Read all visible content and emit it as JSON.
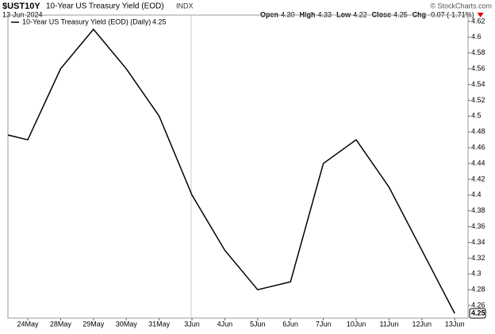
{
  "header": {
    "symbol": "$UST10Y",
    "name": "10-Year US Treasury Yield (EOD)",
    "exchange": "INDX",
    "date": "13-Jun-2024",
    "credit": "© StockCharts.com",
    "quote": [
      {
        "label": "Open",
        "value": "4.30"
      },
      {
        "label": "High",
        "value": "4.33"
      },
      {
        "label": "Low",
        "value": "4.22"
      },
      {
        "label": "Close",
        "value": "4.25"
      },
      {
        "label": "Chg",
        "value": "-0.07 (-1.71%)"
      }
    ]
  },
  "chart_data": {
    "type": "line",
    "categories": [
      null,
      "24May",
      "28May",
      "29May",
      "30May",
      "31May",
      "3Jun",
      "4Jun",
      "5Jun",
      "6Jun",
      "7Jun",
      "10Jun",
      "11Jun",
      "12Jun",
      "13Jun"
    ],
    "series": [
      {
        "name": "10-Year US Treasury Yield (EOD) (Daily)",
        "color": "#000000",
        "values": [
          4.48,
          4.47,
          4.56,
          4.61,
          4.56,
          4.5,
          4.4,
          4.33,
          4.28,
          4.29,
          4.44,
          4.47,
          4.41,
          4.33,
          4.25
        ]
      }
    ],
    "ylim": [
      4.244,
      4.628
    ],
    "yticks": [
      4.26,
      4.28,
      4.3,
      4.32,
      4.34,
      4.36,
      4.38,
      4.4,
      4.42,
      4.44,
      4.46,
      4.48,
      4.5,
      4.52,
      4.54,
      4.56,
      4.58,
      4.6,
      4.62
    ],
    "legend": "top-left"
  }
}
